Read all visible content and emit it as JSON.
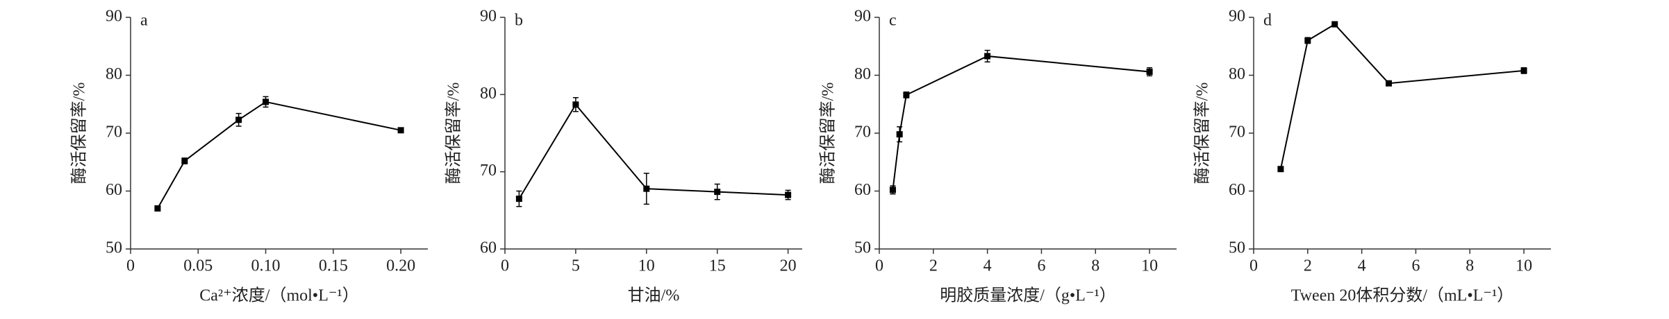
{
  "chart_data": [
    {
      "type": "line",
      "title": "a",
      "xlabel": "Ca²⁺浓度/（mol•L⁻¹）",
      "ylabel": "酶活保留率/%",
      "color": "#000000",
      "x": [
        0.02,
        0.04,
        0.08,
        0.1,
        0.2
      ],
      "values": [
        57,
        65.2,
        72.3,
        75.4,
        70.5
      ],
      "errors": [
        0.4,
        0.5,
        1.1,
        0.9,
        0.2
      ],
      "xlim": [
        0,
        0.22
      ],
      "ylim": [
        50,
        90
      ],
      "xticks": [
        0,
        0.05,
        {
          "value": 0.1,
          "label": "0.10"
        },
        0.15,
        {
          "value": 0.2,
          "label": "0.20"
        }
      ],
      "yticks": [
        50,
        60,
        70,
        80,
        90
      ]
    },
    {
      "type": "line",
      "title": "b",
      "xlabel": "甘油/%",
      "ylabel": "酶活保留率/%",
      "color": "#000000",
      "x": [
        1,
        5,
        10,
        15,
        20
      ],
      "values": [
        66.5,
        78.7,
        67.8,
        67.4,
        67
      ],
      "errors": [
        1,
        0.9,
        2,
        1,
        0.6
      ],
      "xlim": [
        0,
        21
      ],
      "ylim": [
        60,
        90
      ],
      "xticks": [
        0,
        5,
        10,
        15,
        20
      ],
      "yticks": [
        60,
        70,
        80,
        90
      ]
    },
    {
      "type": "line",
      "title": "c",
      "xlabel": "明胶质量浓度/（g•L⁻¹）",
      "ylabel": "酶活保留率/%",
      "color": "#000000",
      "x": [
        0.5,
        0.75,
        1,
        4,
        10
      ],
      "values": [
        60.2,
        69.8,
        76.6,
        83.3,
        80.6
      ],
      "errors": [
        0.7,
        1.3,
        0.5,
        1,
        0.7
      ],
      "xlim": [
        0,
        11
      ],
      "ylim": [
        50,
        90
      ],
      "xticks": [
        0,
        2,
        4,
        6,
        8,
        10
      ],
      "yticks": [
        50,
        60,
        70,
        80,
        90
      ]
    },
    {
      "type": "line",
      "title": "d",
      "xlabel": "Tween 20体积分数/（mL•L⁻¹）",
      "ylabel": "酶活保留率/%",
      "color": "#000000",
      "x": [
        1,
        2,
        3,
        5,
        10
      ],
      "values": [
        63.8,
        86,
        88.8,
        78.6,
        80.8
      ],
      "errors": [
        0.3,
        0.5,
        0.4,
        0.4,
        0.5
      ],
      "xlim": [
        0,
        11
      ],
      "ylim": [
        50,
        90
      ],
      "xticks": [
        0,
        2,
        4,
        6,
        8,
        10
      ],
      "yticks": [
        50,
        60,
        70,
        80,
        90
      ]
    }
  ]
}
